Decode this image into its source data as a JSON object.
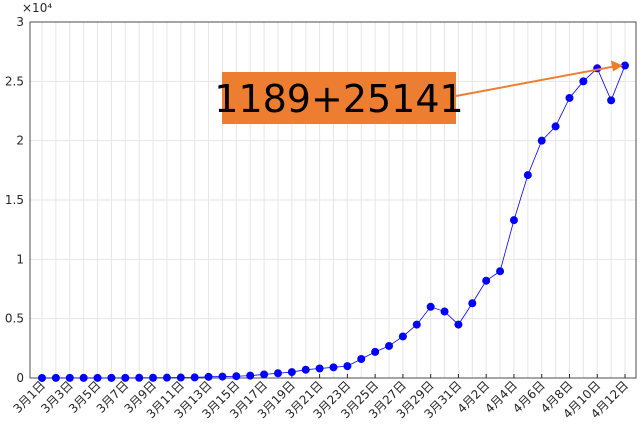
{
  "chart_data": {
    "type": "line",
    "categories": [
      "3月1日",
      null,
      "3月3日",
      null,
      "3月5日",
      null,
      "3月7日",
      null,
      "3月9日",
      null,
      "3月11日",
      null,
      "3月13日",
      null,
      "3月15日",
      null,
      "3月17日",
      null,
      "3月19日",
      null,
      "3月21日",
      null,
      "3月23日",
      null,
      "3月25日",
      null,
      "3月27日",
      null,
      "3月29日",
      null,
      "3月31日",
      null,
      "4月2日",
      null,
      "4月4日",
      null,
      "4月6日",
      null,
      "4月8日",
      null,
      "4月10日",
      null,
      "4月12日"
    ],
    "series": [
      {
        "color": "#0000ff",
        "values": [
          0.0005,
          0.001,
          0.001,
          0.001,
          0.001,
          0.001,
          0.001,
          0.002,
          0.002,
          0.003,
          0.004,
          0.005,
          0.01,
          0.012,
          0.015,
          0.02,
          0.03,
          0.04,
          0.05,
          0.07,
          0.08,
          0.09,
          0.1,
          0.16,
          0.22,
          0.27,
          0.35,
          0.45,
          0.6,
          0.56,
          0.45,
          0.63,
          0.82,
          0.9,
          1.33,
          1.71,
          2.0,
          2.12,
          2.36,
          2.5,
          2.61,
          2.34,
          2.633
        ]
      }
    ],
    "ylim": [
      0,
      3
    ],
    "yticks": [
      0,
      0.5,
      1,
      1.5,
      2,
      2.5,
      3
    ],
    "y_exponent_label": "×10⁴",
    "grid": true,
    "annotation": {
      "text": "1189+25141",
      "color": "#ed7d31"
    }
  }
}
